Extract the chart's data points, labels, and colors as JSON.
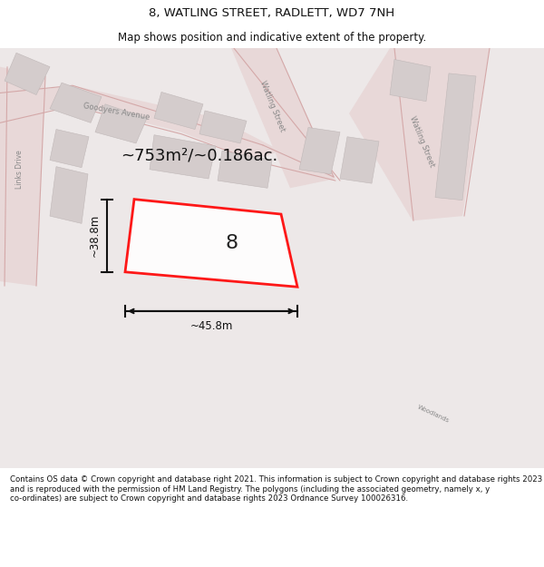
{
  "title": "8, WATLING STREET, RADLETT, WD7 7NH",
  "subtitle": "Map shows position and indicative extent of the property.",
  "footer": "Contains OS data © Crown copyright and database right 2021. This information is subject to Crown copyright and database rights 2023 and is reproduced with the permission of HM Land Registry. The polygons (including the associated geometry, namely x, y co-ordinates) are subject to Crown copyright and database rights 2023 Ordnance Survey 100026316.",
  "area_label": "~753m²/~0.186ac.",
  "width_label": "~45.8m",
  "height_label": "~38.8m",
  "plot_number": "8",
  "plot_outline_color": "#ff0000",
  "map_bg_color": "#f0eeee",
  "building_color": "#d4cccc",
  "building_edge": "#c0b8b8",
  "road_fill": "#e8d8d8",
  "road_line": "#d4a8a8",
  "title_fontsize": 9.5,
  "subtitle_fontsize": 8.5,
  "footer_fontsize": 6.2,
  "area_fontsize": 13,
  "dim_fontsize": 8.5,
  "plot_num_fontsize": 16,
  "street_fontsize": 6.0
}
